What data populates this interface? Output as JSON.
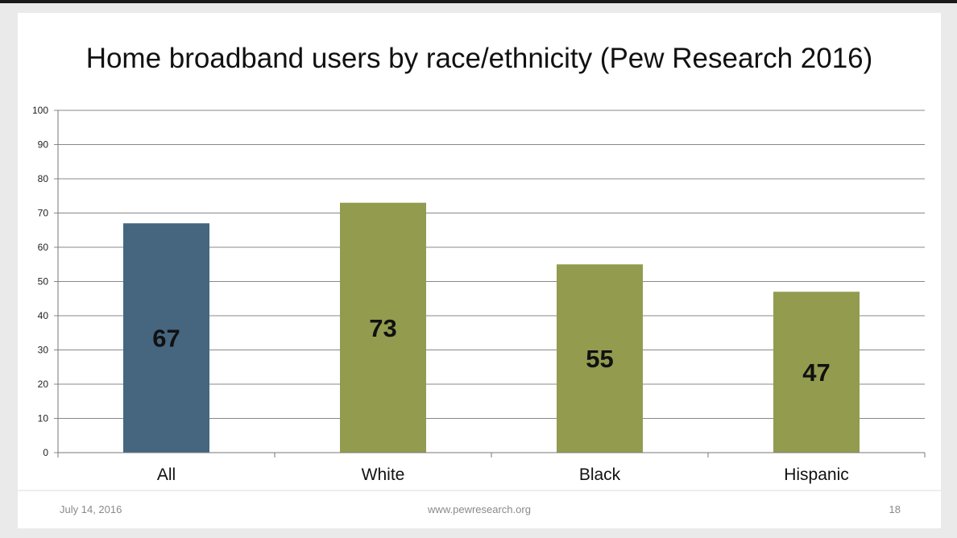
{
  "chart_data": {
    "type": "bar",
    "title": "Home broadband users by race/ethnicity (Pew Research 2016)",
    "categories": [
      "All",
      "White",
      "Black",
      "Hispanic"
    ],
    "values": [
      67,
      73,
      55,
      47
    ],
    "value_labels": [
      "67",
      "73",
      "55",
      "47"
    ],
    "bar_colors": [
      "#46667f",
      "#939b4f",
      "#939b4f",
      "#939b4f"
    ],
    "ylim": [
      0,
      100
    ],
    "yticks": [
      0,
      10,
      20,
      30,
      40,
      50,
      60,
      70,
      80,
      90,
      100
    ],
    "xlabel": "",
    "ylabel": "",
    "grid": true,
    "legend": "none"
  },
  "footer": {
    "date": "July 14, 2016",
    "url": "www.pewresearch.org",
    "page": "18"
  },
  "colors": {
    "gridline": "#888888",
    "title": "#111111",
    "footer_text": "#8a8a8a"
  }
}
